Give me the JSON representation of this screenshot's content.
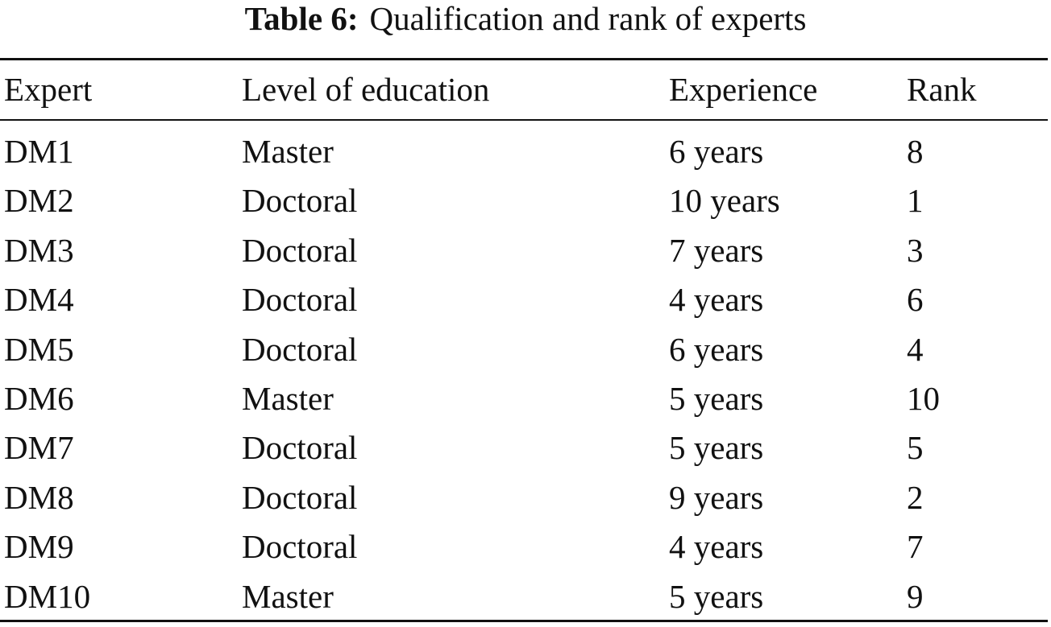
{
  "caption": {
    "label": "Table 6:",
    "title": "Qualification and rank of experts"
  },
  "table": {
    "header": [
      "Expert",
      "Level of education",
      "Experience",
      "Rank"
    ],
    "rows": [
      [
        "DM1",
        "Master",
        "6 years",
        8
      ],
      [
        "DM2",
        "Doctoral",
        "10 years",
        1
      ],
      [
        "DM3",
        "Doctoral",
        "7 years",
        3
      ],
      [
        "DM4",
        "Doctoral",
        "4 years",
        6
      ],
      [
        "DM5",
        "Doctoral",
        "6 years",
        4
      ],
      [
        "DM6",
        "Master",
        "5 years",
        10
      ],
      [
        "DM7",
        "Doctoral",
        "5 years",
        5
      ],
      [
        "DM8",
        "Doctoral",
        "9 years",
        2
      ],
      [
        "DM9",
        "Doctoral",
        "4 years",
        7
      ],
      [
        "DM10",
        "Master",
        "5 years",
        9
      ]
    ]
  }
}
